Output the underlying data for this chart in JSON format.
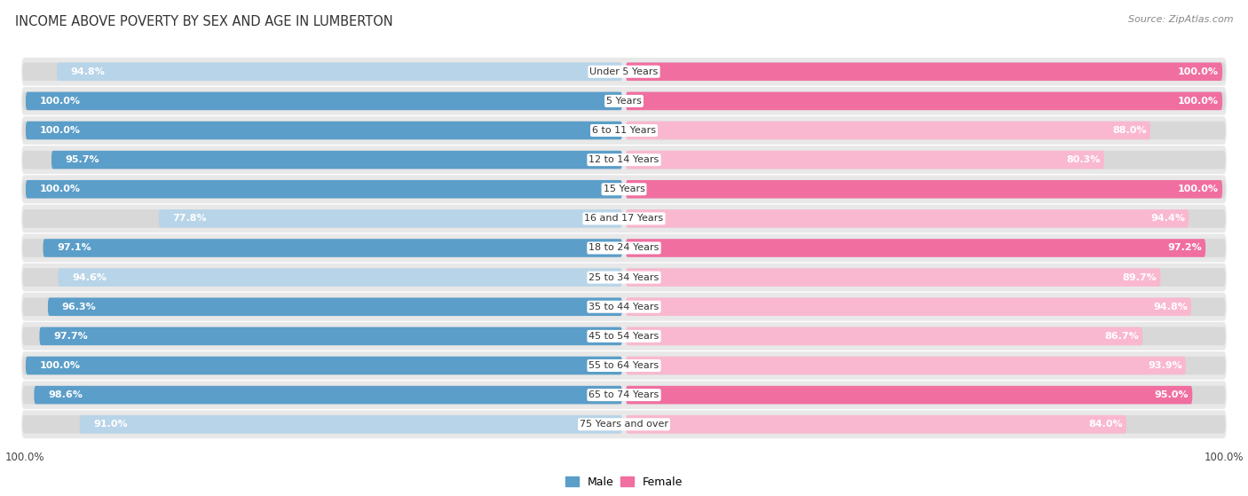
{
  "title": "INCOME ABOVE POVERTY BY SEX AND AGE IN LUMBERTON",
  "source": "Source: ZipAtlas.com",
  "categories": [
    "Under 5 Years",
    "5 Years",
    "6 to 11 Years",
    "12 to 14 Years",
    "15 Years",
    "16 and 17 Years",
    "18 to 24 Years",
    "25 to 34 Years",
    "35 to 44 Years",
    "45 to 54 Years",
    "55 to 64 Years",
    "65 to 74 Years",
    "75 Years and over"
  ],
  "male_values": [
    94.8,
    100.0,
    100.0,
    95.7,
    100.0,
    77.8,
    97.1,
    94.6,
    96.3,
    97.7,
    100.0,
    98.6,
    91.0
  ],
  "female_values": [
    100.0,
    100.0,
    88.0,
    80.3,
    100.0,
    94.4,
    97.2,
    89.7,
    94.8,
    86.7,
    93.9,
    95.0,
    84.0
  ],
  "male_high_color": "#5b9ec9",
  "male_low_color": "#b8d4e8",
  "female_high_color": "#f06fa0",
  "female_low_color": "#f9b8d0",
  "row_bg_color": "#e8e8e8",
  "background_color": "#ffffff",
  "title_fontsize": 10.5,
  "label_fontsize": 8,
  "value_fontsize": 8,
  "legend_fontsize": 9,
  "source_fontsize": 8,
  "bar_height": 0.62,
  "high_threshold": 95.0
}
